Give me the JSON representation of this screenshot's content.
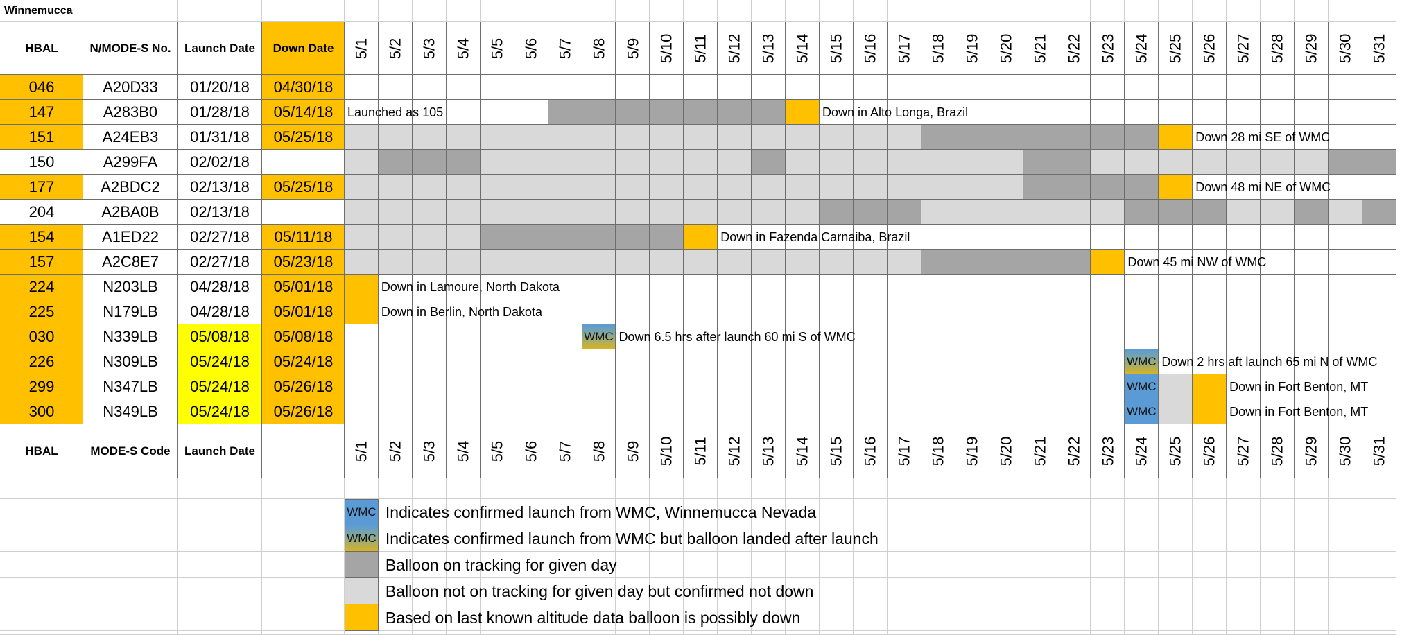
{
  "sheet_title": "Winnemucca",
  "header": {
    "hbal": "HBAL",
    "code": "N/MODE-S No.",
    "launch": "Launch Date",
    "down": "Down Date"
  },
  "footer_header": {
    "hbal": "HBAL",
    "code": "MODE-S Code",
    "launch": "Launch Date",
    "down": ""
  },
  "dates": [
    "5/1",
    "5/2",
    "5/3",
    "5/4",
    "5/5",
    "5/6",
    "5/7",
    "5/8",
    "5/9",
    "5/10",
    "5/11",
    "5/12",
    "5/13",
    "5/14",
    "5/15",
    "5/16",
    "5/17",
    "5/18",
    "5/19",
    "5/20",
    "5/21",
    "5/22",
    "5/23",
    "5/24",
    "5/25",
    "5/26",
    "5/27",
    "5/28",
    "5/29",
    "5/30",
    "5/31"
  ],
  "rows": [
    {
      "hbal": "046",
      "code": "A20D33",
      "launch": "01/20/18",
      "down": "04/30/18",
      "launch_hl": false,
      "down_hl": true,
      "days": "...............................",
      "note": "",
      "note_day": 0
    },
    {
      "hbal": "147",
      "code": "A283B0",
      "launch": "01/28/18",
      "down": "05/14/18",
      "launch_hl": false,
      "down_hl": true,
      "days": "......DDDDDDDO.................",
      "note": "Down in Alto Longa, Brazil",
      "note_day": 15,
      "pre_note": "Launched as 105"
    },
    {
      "hbal": "151",
      "code": "A24EB3",
      "launch": "01/31/18",
      "down": "05/25/18",
      "launch_hl": false,
      "down_hl": true,
      "days": "LLLLLLLLLLLLLLLLLDDDDDDDO......",
      "note": "Down 28 mi SE of WMC",
      "note_day": 26
    },
    {
      "hbal": "150",
      "code": "A299FA",
      "launch": "02/02/18",
      "down": "",
      "launch_hl": false,
      "down_hl": false,
      "days": "LDDDLLLLLLLLDLLLLLLLDDLLLLLLLDD",
      "note": "",
      "note_day": 0
    },
    {
      "hbal": "177",
      "code": "A2BDC2",
      "launch": "02/13/18",
      "down": "05/25/18",
      "launch_hl": false,
      "down_hl": true,
      "days": "LLLLLLLLLLLLLLLLLLLLDDDDO......",
      "note": "Down 48 mi NE of WMC",
      "note_day": 26
    },
    {
      "hbal": "204",
      "code": "A2BA0B",
      "launch": "02/13/18",
      "down": "",
      "launch_hl": false,
      "down_hl": false,
      "days": "LLLLLLLLLLLLLLDDDLLLLLLDDDLLDLD",
      "note": "",
      "note_day": 0
    },
    {
      "hbal": "154",
      "code": "A1ED22",
      "launch": "02/27/18",
      "down": "05/11/18",
      "launch_hl": false,
      "down_hl": true,
      "days": "LLLLDDDDDDO....................",
      "note": "Down in Fazenda Carnaiba, Brazil",
      "note_day": 12
    },
    {
      "hbal": "157",
      "code": "A2C8E7",
      "launch": "02/27/18",
      "down": "05/23/18",
      "launch_hl": false,
      "down_hl": true,
      "days": "LLLLLLLLLLLLLLLLLDDDDDO........",
      "note": "Down 45 mi NW of WMC",
      "note_day": 24
    },
    {
      "hbal": "224",
      "code": "N203LB",
      "launch": "04/28/18",
      "down": "05/01/18",
      "launch_hl": false,
      "down_hl": true,
      "days": "O..............................",
      "note": "Down in Lamoure, North Dakota",
      "note_day": 2
    },
    {
      "hbal": "225",
      "code": "N179LB",
      "launch": "04/28/18",
      "down": "05/01/18",
      "launch_hl": false,
      "down_hl": true,
      "days": "O..............................",
      "note": "Down in Berlin, North Dakota",
      "note_day": 2
    },
    {
      "hbal": "030",
      "code": "N339LB",
      "launch": "05/08/18",
      "down": "05/08/18",
      "launch_hl": true,
      "down_hl": true,
      "days": ".......G.......................",
      "note": "Down 6.5 hrs after launch 60 mi S of WMC",
      "note_day": 9
    },
    {
      "hbal": "226",
      "code": "N309LB",
      "launch": "05/24/18",
      "down": "05/24/18",
      "launch_hl": true,
      "down_hl": true,
      "days": ".......................G.......",
      "note": "Down 2 hrs aft launch 65 mi N of WMC",
      "note_day": 25
    },
    {
      "hbal": "299",
      "code": "N347LB",
      "launch": "05/24/18",
      "down": "05/26/18",
      "launch_hl": true,
      "down_hl": true,
      "days": ".......................BLO.....",
      "note": "Down in Fort Benton, MT",
      "note_day": 27
    },
    {
      "hbal": "300",
      "code": "N349LB",
      "launch": "05/24/18",
      "down": "05/26/18",
      "launch_hl": true,
      "down_hl": true,
      "days": ".......................BLO.....",
      "note": "Down in Fort Benton, MT",
      "note_day": 27
    }
  ],
  "wmc_label": "WMC",
  "legend": [
    {
      "swatch": "blue",
      "label": "WMC",
      "text": "Indicates confirmed launch from WMC, Winnemucca Nevada"
    },
    {
      "swatch": "grad",
      "label": "WMC",
      "text": "Indicates confirmed launch from WMC but balloon landed after launch"
    },
    {
      "swatch": "dark",
      "label": "",
      "text": "Balloon on tracking for given day"
    },
    {
      "swatch": "light",
      "label": "",
      "text": "Balloon not on tracking for given day but confirmed not down"
    },
    {
      "swatch": "orange",
      "label": "",
      "text": "Based on last known altitude data balloon is possibly down"
    }
  ],
  "colors": {
    "orange": "#ffc000",
    "yellow": "#ffff00",
    "dark": "#a5a5a5",
    "light": "#d9d9d9",
    "blue": "#5b9bd5"
  }
}
